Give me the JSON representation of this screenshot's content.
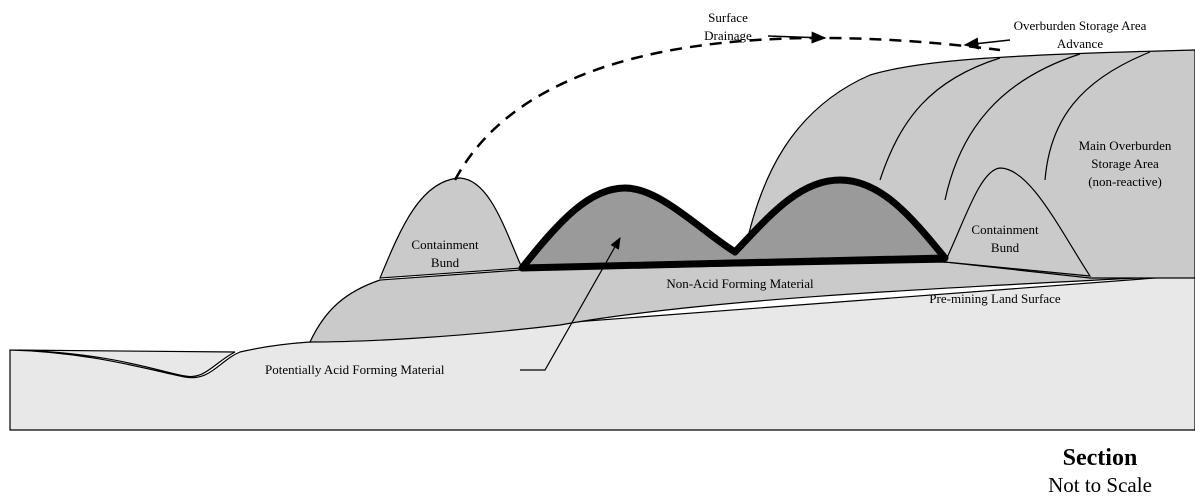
{
  "labels": {
    "surface_drainage": [
      "Surface",
      "Drainage"
    ],
    "advance": [
      "Overburden Storage Area",
      "Advance"
    ],
    "main_storage": [
      "Main Overburden",
      "Storage Area",
      "(non-reactive)"
    ],
    "left_bund": [
      "Containment",
      "Bund"
    ],
    "right_bund": [
      "Containment",
      "Bund"
    ],
    "naf": "Non-Acid Forming Material",
    "land_surface": "Pre-mining Land Surface",
    "paf": "Potentially Acid Forming Material"
  },
  "caption": {
    "title": "Section",
    "subtitle": "Not to Scale"
  }
}
